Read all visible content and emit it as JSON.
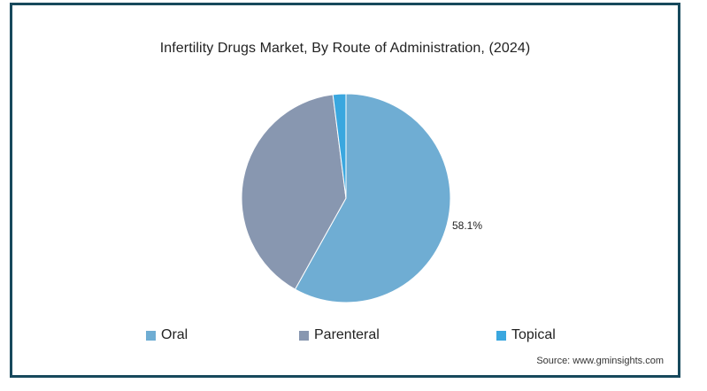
{
  "chart_data": {
    "type": "pie",
    "title": "Infertility Drugs Market, By Route of Administration, (2024)",
    "categories": [
      "Oral",
      "Parenteral",
      "Topical"
    ],
    "values": [
      58.1,
      39.9,
      2.0
    ],
    "unit": "%",
    "data_labels": [
      "58.1%",
      "",
      ""
    ],
    "colors": [
      "#6fadd3",
      "#8897b0",
      "#3aa7df"
    ],
    "legend": {
      "placement": "bottom",
      "entries": [
        "Oral",
        "Parenteral",
        "Topical"
      ]
    },
    "grid": false
  },
  "source": "Source: www.gminsights.com",
  "frame_color": "#17495c"
}
